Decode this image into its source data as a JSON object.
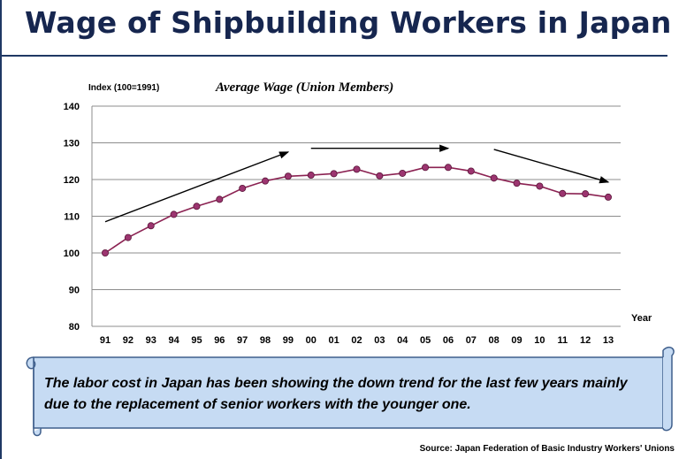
{
  "slide": {
    "title": "Wage of Shipbuilding Workers in Japan",
    "accent_color": "#1f3864"
  },
  "chart_data": {
    "type": "line",
    "title": "Average Wage (Union Members)",
    "ylabel": "Index (100=1991)",
    "xlabel": "Year",
    "categories": [
      "91",
      "92",
      "93",
      "94",
      "95",
      "96",
      "97",
      "98",
      "99",
      "00",
      "01",
      "02",
      "03",
      "04",
      "05",
      "06",
      "07",
      "08",
      "09",
      "10",
      "11",
      "12",
      "13"
    ],
    "series": [
      {
        "values": [
          100,
          104.2,
          107.4,
          110.5,
          112.7,
          114.6,
          117.6,
          119.6,
          120.9,
          121.2,
          121.6,
          122.8,
          121.0,
          121.7,
          123.3,
          123.3,
          122.3,
          120.4,
          119.0,
          118.2,
          116.2,
          116.1,
          115.2
        ],
        "line_color": "#8b2252",
        "marker_color": "#9c3570"
      }
    ],
    "ylim": [
      80,
      140
    ],
    "yticks": [
      80,
      90,
      100,
      110,
      120,
      130,
      140
    ],
    "grid": "horizontal",
    "annotations": [
      {
        "type": "arrow",
        "from": [
          "91",
          108.5
        ],
        "to": [
          "99",
          127.5
        ]
      },
      {
        "type": "arrow",
        "from": [
          "00",
          128.5
        ],
        "to": [
          "06",
          128.5
        ]
      },
      {
        "type": "arrow",
        "from": [
          "08",
          128.2
        ],
        "to": [
          "13",
          119.3
        ]
      }
    ]
  },
  "callout": {
    "text": "The labor cost in Japan has been showing the down trend for the last few years mainly due to the replacement of senior workers with the younger one.",
    "fill_color": "#c6dbf3"
  },
  "source": "Source: Japan Federation of Basic Industry Workers' Unions"
}
